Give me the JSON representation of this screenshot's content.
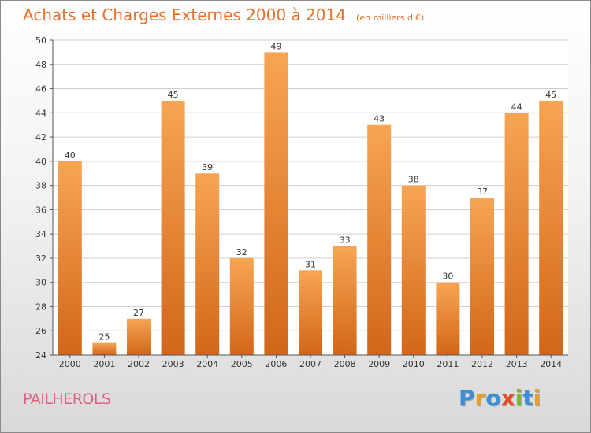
{
  "chart_data": {
    "type": "bar",
    "title": "Achats et Charges Externes 2000 à 2014",
    "subtitle": "(en milliers d'€)",
    "categories": [
      "2000",
      "2001",
      "2002",
      "2003",
      "2004",
      "2005",
      "2006",
      "2007",
      "2008",
      "2009",
      "2010",
      "2011",
      "2012",
      "2013",
      "2014"
    ],
    "values": [
      40,
      25,
      27,
      45,
      39,
      32,
      49,
      31,
      33,
      43,
      38,
      30,
      37,
      44,
      45
    ],
    "ylim": [
      24,
      50
    ],
    "yticks": [
      24,
      26,
      28,
      30,
      32,
      34,
      36,
      38,
      40,
      42,
      44,
      46,
      48,
      50
    ],
    "grid": true,
    "bar_color_top": "#f7a553",
    "bar_color_bottom": "#d2661a"
  },
  "footer": {
    "commune": "PAILHEROLS",
    "logo": "Proxiti",
    "logo_colors": [
      "#3a8fd6",
      "#e8a021",
      "#3a8fd6",
      "#e64b2a",
      "#7ab82e",
      "#3a8fd6",
      "#e8a021"
    ]
  }
}
